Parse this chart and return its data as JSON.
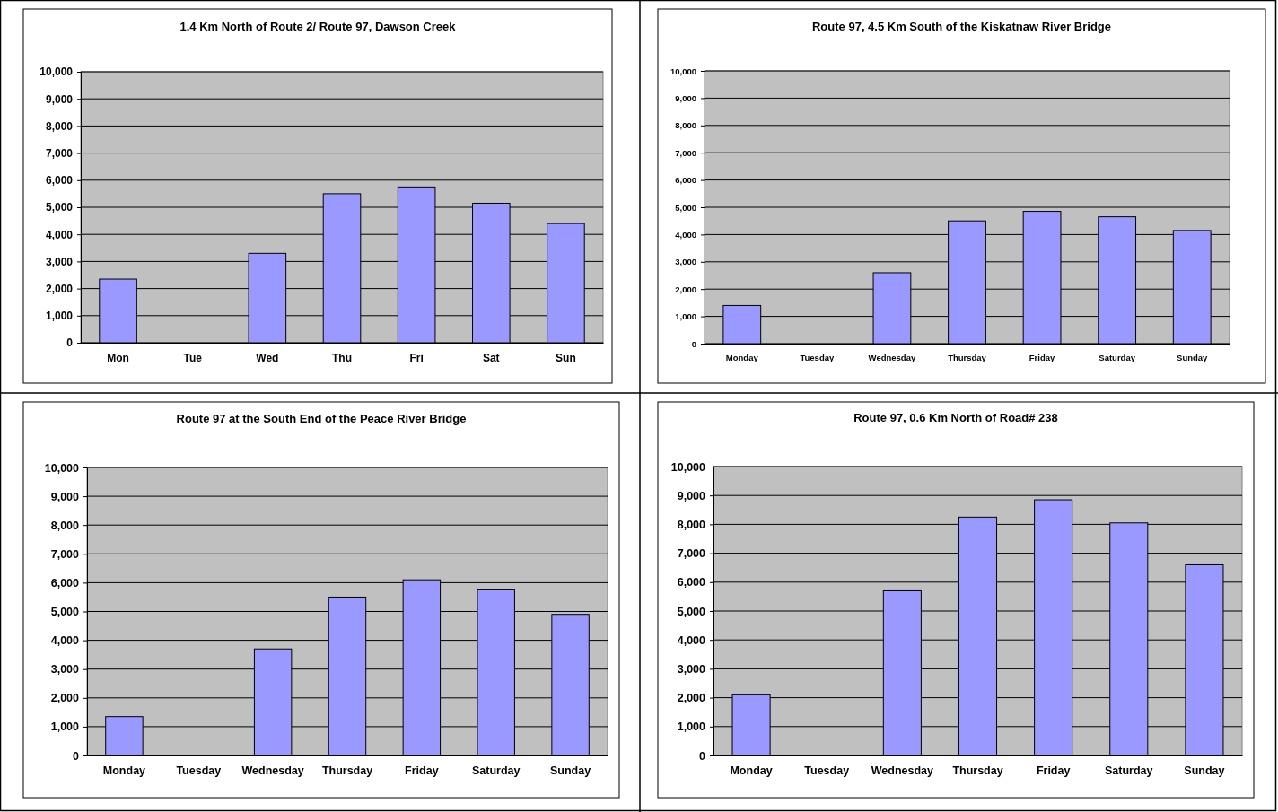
{
  "chart_data": [
    {
      "type": "bar",
      "title": "1.4 Km North of Route 2/ Route 97, Dawson Creek",
      "categories": [
        "Mon",
        "Tue",
        "Wed",
        "Thu",
        "Fri",
        "Sat",
        "Sun"
      ],
      "values": [
        2350,
        null,
        3300,
        5500,
        5750,
        5150,
        4400
      ],
      "color": "#9999ff",
      "ylim": [
        0,
        10000
      ],
      "yticks": [
        {
          "value": 0,
          "label": "0"
        },
        {
          "value": 1000,
          "label": "1,000"
        },
        {
          "value": 2000,
          "label": "2,000"
        },
        {
          "value": 3000,
          "label": "3,000"
        },
        {
          "value": 4000,
          "label": "4,000"
        },
        {
          "value": 5000,
          "label": "5,000"
        },
        {
          "value": 6000,
          "label": "6,000"
        },
        {
          "value": 7000,
          "label": "7,000"
        },
        {
          "value": 8000,
          "label": "8,000"
        },
        {
          "value": 9000,
          "label": "9,000"
        },
        {
          "value": 10000,
          "label": "10,000"
        }
      ],
      "grid": "y"
    },
    {
      "type": "bar",
      "title": "Route 97, 4.5 Km South of the Kiskatnaw River Bridge",
      "categories": [
        "Monday",
        "Tuesday",
        "Wednesday",
        "Thursday",
        "Friday",
        "Saturday",
        "Sunday"
      ],
      "values": [
        1400,
        null,
        2600,
        4500,
        4850,
        4650,
        4150
      ],
      "color": "#9999ff",
      "ylim": [
        0,
        10000
      ],
      "yticks": [
        {
          "value": 0,
          "label": "0"
        },
        {
          "value": 1000,
          "label": "1,000"
        },
        {
          "value": 2000,
          "label": "2,000"
        },
        {
          "value": 3000,
          "label": "3,000"
        },
        {
          "value": 4000,
          "label": "4,000"
        },
        {
          "value": 5000,
          "label": "5,000"
        },
        {
          "value": 6000,
          "label": "6,000"
        },
        {
          "value": 7000,
          "label": "7,000"
        },
        {
          "value": 8000,
          "label": "8,000"
        },
        {
          "value": 9000,
          "label": "9,000"
        },
        {
          "value": 10000,
          "label": "10,000"
        }
      ],
      "grid": "y"
    },
    {
      "type": "bar",
      "title": "Route 97 at the South End of the Peace River Bridge",
      "categories": [
        "Monday",
        "Tuesday",
        "Wednesday",
        "Thursday",
        "Friday",
        "Saturday",
        "Sunday"
      ],
      "values": [
        1350,
        null,
        3700,
        5500,
        6100,
        5750,
        4900
      ],
      "color": "#9999ff",
      "ylim": [
        0,
        10000
      ],
      "yticks": [
        {
          "value": 0,
          "label": "0"
        },
        {
          "value": 1000,
          "label": "1,000"
        },
        {
          "value": 2000,
          "label": "2,000"
        },
        {
          "value": 3000,
          "label": "3,000"
        },
        {
          "value": 4000,
          "label": "4,000"
        },
        {
          "value": 5000,
          "label": "5,000"
        },
        {
          "value": 6000,
          "label": "6,000"
        },
        {
          "value": 7000,
          "label": "7,000"
        },
        {
          "value": 8000,
          "label": "8,000"
        },
        {
          "value": 9000,
          "label": "9,000"
        },
        {
          "value": 10000,
          "label": "10,000"
        }
      ],
      "grid": "y"
    },
    {
      "type": "bar",
      "title": "Route 97, 0.6 Km North of Road# 238",
      "categories": [
        "Monday",
        "Tuesday",
        "Wednesday",
        "Thursday",
        "Friday",
        "Saturday",
        "Sunday"
      ],
      "values": [
        2100,
        null,
        5700,
        8250,
        8850,
        8050,
        6600
      ],
      "color": "#9999ff",
      "ylim": [
        0,
        10000
      ],
      "yticks": [
        {
          "value": 0,
          "label": "0"
        },
        {
          "value": 1000,
          "label": "1,000"
        },
        {
          "value": 2000,
          "label": "2,000"
        },
        {
          "value": 3000,
          "label": "3,000"
        },
        {
          "value": 4000,
          "label": "4,000"
        },
        {
          "value": 5000,
          "label": "5,000"
        },
        {
          "value": 6000,
          "label": "6,000"
        },
        {
          "value": 7000,
          "label": "7,000"
        },
        {
          "value": 8000,
          "label": "8,000"
        },
        {
          "value": 9000,
          "label": "9,000"
        },
        {
          "value": 10000,
          "label": "10,000"
        }
      ],
      "grid": "y"
    }
  ]
}
